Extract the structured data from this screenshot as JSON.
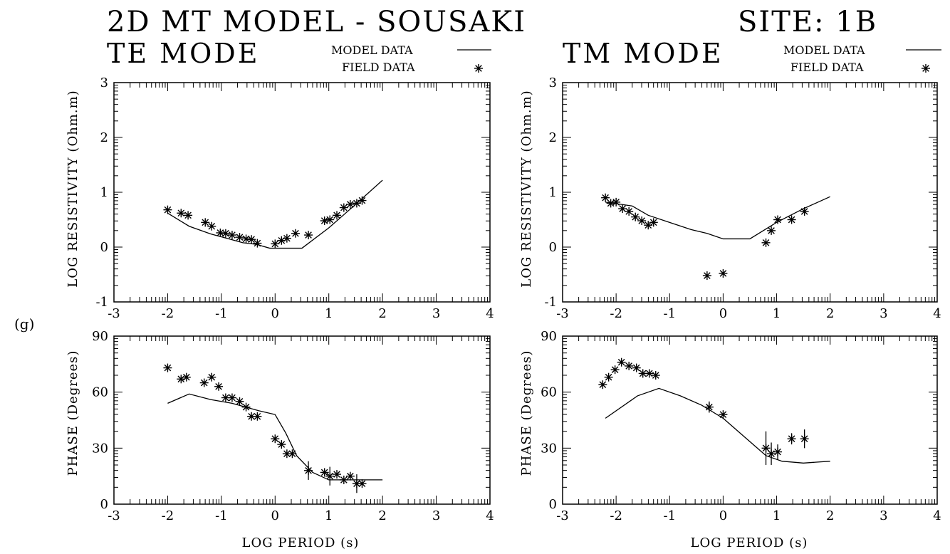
{
  "header": {
    "title_left": "2D MT MODEL - SOUSAKI",
    "title_right": "SITE: 1B",
    "panel_label": "(g)"
  },
  "legend": {
    "model": "MODEL DATA",
    "field": "FIELD DATA"
  },
  "modes": {
    "te": "TE MODE",
    "tm": "TM MODE"
  },
  "axes": {
    "resistivity_ylabel": "LOG RESISTIVITY (Ohm.m)",
    "phase_ylabel": "PHASE (Degrees)",
    "xlabel": "LOG PERIOD (s)",
    "x_ticks": [
      "-3",
      "-2",
      "-1",
      "0",
      "1",
      "2",
      "3",
      "4"
    ],
    "res_ticks": [
      "3",
      "2",
      "1",
      "0",
      "-1"
    ],
    "phase_ticks": [
      "90",
      "60",
      "30",
      "0"
    ]
  },
  "colors": {
    "ink": "#000000",
    "background": "#ffffff"
  },
  "chart_data": [
    {
      "type": "line",
      "name": "te_resistivity",
      "mode": "TE MODE",
      "xlim": [
        -3,
        4
      ],
      "ylim": [
        -1,
        3
      ],
      "grid": false,
      "legend_position": "top-right",
      "model": {
        "x": [
          -2.0,
          -1.6,
          -1.2,
          -0.9,
          -0.6,
          -0.35,
          -0.1,
          0.0,
          0.5,
          1.0,
          1.5,
          2.0
        ],
        "y": [
          0.62,
          0.38,
          0.24,
          0.16,
          0.08,
          0.05,
          -0.02,
          -0.02,
          -0.02,
          0.35,
          0.78,
          1.22
        ]
      },
      "field": {
        "x": [
          -2.0,
          -1.75,
          -1.62,
          -1.3,
          -1.18,
          -1.02,
          -0.92,
          -0.8,
          -0.66,
          -0.54,
          -0.44,
          -0.33,
          0.0,
          0.12,
          0.22,
          0.38,
          0.62,
          0.92,
          1.02,
          1.15,
          1.28,
          1.4,
          1.52,
          1.62
        ],
        "y": [
          0.68,
          0.62,
          0.58,
          0.45,
          0.38,
          0.26,
          0.25,
          0.22,
          0.18,
          0.15,
          0.14,
          0.07,
          0.06,
          0.12,
          0.16,
          0.25,
          0.22,
          0.48,
          0.5,
          0.58,
          0.72,
          0.78,
          0.8,
          0.85
        ]
      }
    },
    {
      "type": "line",
      "name": "tm_resistivity",
      "mode": "TM MODE",
      "xlim": [
        -3,
        4
      ],
      "ylim": [
        -1,
        3
      ],
      "grid": false,
      "legend_position": "top-right",
      "model": {
        "x": [
          -2.2,
          -1.7,
          -1.4,
          -1.0,
          -0.6,
          -0.3,
          0.0,
          0.5,
          1.0,
          1.5,
          2.0
        ],
        "y": [
          0.82,
          0.75,
          0.58,
          0.45,
          0.32,
          0.25,
          0.15,
          0.15,
          0.45,
          0.7,
          0.92
        ]
      },
      "field": {
        "x": [
          -2.2,
          -2.1,
          -2.0,
          -1.88,
          -1.76,
          -1.64,
          -1.52,
          -1.4,
          -1.3,
          -0.3,
          0.0,
          0.8,
          0.9,
          1.02,
          1.28,
          1.52
        ],
        "y": [
          0.9,
          0.8,
          0.82,
          0.7,
          0.65,
          0.55,
          0.48,
          0.4,
          0.45,
          -0.52,
          -0.48,
          0.08,
          0.3,
          0.5,
          0.5,
          0.65
        ]
      }
    },
    {
      "type": "line",
      "name": "te_phase",
      "mode": "TE MODE",
      "xlim": [
        -3,
        4
      ],
      "ylim": [
        0,
        90
      ],
      "grid": false,
      "model": {
        "x": [
          -2.0,
          -1.6,
          -1.2,
          -0.8,
          -0.3,
          0.0,
          0.2,
          0.4,
          0.7,
          1.0,
          1.5,
          2.0
        ],
        "y": [
          54,
          59,
          56,
          54,
          50,
          48,
          38,
          26,
          17,
          13,
          13,
          13
        ]
      },
      "field": {
        "x": [
          -2.0,
          -1.75,
          -1.65,
          -1.32,
          -1.18,
          -1.05,
          -0.92,
          -0.8,
          -0.66,
          -0.54,
          -0.44,
          -0.33,
          0.0,
          0.12,
          0.22,
          0.32,
          0.62,
          0.92,
          1.02,
          1.15,
          1.28,
          1.4,
          1.52,
          1.62
        ],
        "y": [
          73,
          67,
          68,
          65,
          68,
          63,
          57,
          57,
          55,
          52,
          47,
          47,
          35,
          32,
          27,
          27,
          18,
          17,
          15,
          16,
          13,
          15,
          11,
          11
        ]
      },
      "errors": {
        "x": [
          0.62,
          1.02,
          1.52
        ],
        "y": [
          18,
          15,
          11
        ],
        "half_range": [
          5,
          5,
          5
        ]
      }
    },
    {
      "type": "line",
      "name": "tm_phase",
      "mode": "TM MODE",
      "xlim": [
        -3,
        4
      ],
      "ylim": [
        0,
        90
      ],
      "grid": false,
      "model": {
        "x": [
          -2.2,
          -1.6,
          -1.2,
          -0.8,
          -0.4,
          0.0,
          0.4,
          0.8,
          1.1,
          1.5,
          2.0
        ],
        "y": [
          46,
          58,
          62,
          58,
          53,
          46,
          36,
          26,
          23,
          22,
          23
        ]
      },
      "field": {
        "x": [
          -2.25,
          -2.14,
          -2.02,
          -1.9,
          -1.76,
          -1.62,
          -1.5,
          -1.38,
          -1.26,
          -0.26,
          0.0,
          0.8,
          0.9,
          1.02,
          1.28,
          1.52
        ],
        "y": [
          64,
          68,
          72,
          76,
          74,
          73,
          70,
          70,
          69,
          52,
          48,
          30,
          27,
          28,
          35,
          35
        ]
      },
      "errors": {
        "x": [
          -0.26,
          0.8,
          0.9,
          1.02,
          1.28,
          1.52
        ],
        "y": [
          52,
          30,
          27,
          28,
          35,
          35
        ],
        "half_range": [
          3,
          9,
          6,
          4,
          3,
          5
        ]
      }
    }
  ]
}
